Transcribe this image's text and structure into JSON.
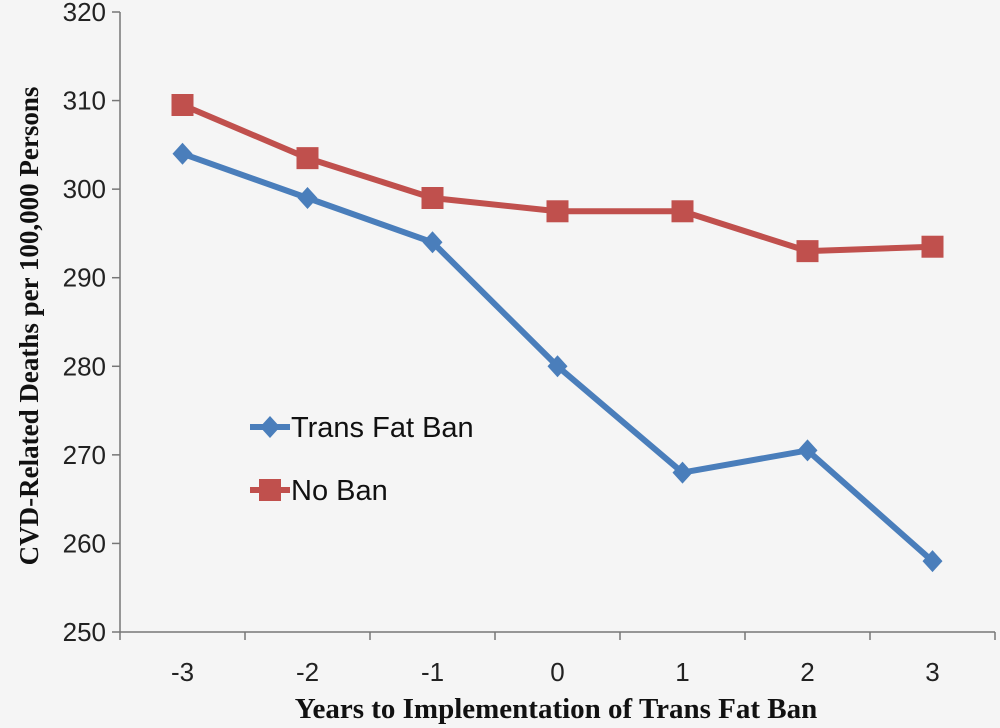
{
  "chart_data": {
    "type": "line",
    "title": "",
    "xlabel": "Years to Implementation of Trans Fat Ban",
    "ylabel": "CVD-Related Deaths per 100,000 Persons",
    "categories": [
      "-3",
      "-2",
      "-1",
      "0",
      "1",
      "2",
      "3"
    ],
    "ylim": [
      250,
      320
    ],
    "yticks": [
      250,
      260,
      270,
      280,
      290,
      300,
      310,
      320
    ],
    "grid": false,
    "legend_position": "left",
    "series": [
      {
        "name": "Trans Fat Ban",
        "color": "#4a7ebb",
        "marker": "diamond",
        "values": [
          304,
          299,
          294,
          280,
          268,
          270.5,
          258
        ]
      },
      {
        "name": "No Ban",
        "color": "#c0504d",
        "marker": "square",
        "values": [
          309.5,
          303.5,
          299,
          297.5,
          297.5,
          293,
          293.5
        ]
      }
    ]
  }
}
